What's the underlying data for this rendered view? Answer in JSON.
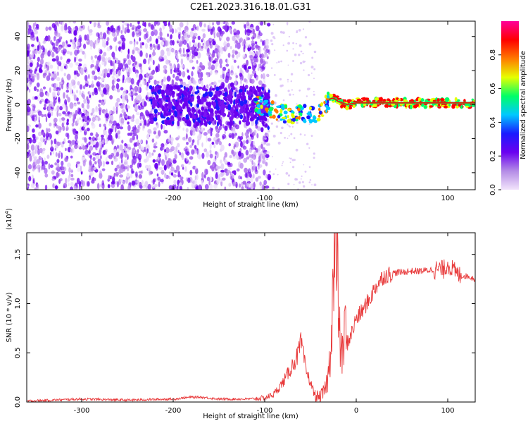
{
  "title": "C2E1.2023.316.18.01.G31",
  "chart_data": [
    {
      "type": "heatmap",
      "xlabel": "Height of straight line (km)",
      "ylabel": "Frequency (Hz)",
      "xlim": [
        -360,
        130
      ],
      "ylim": [
        -50,
        49
      ],
      "x_ticks": [
        -300,
        -200,
        -100,
        0,
        100
      ],
      "y_ticks": [
        -40,
        -20,
        0,
        20,
        40
      ],
      "colorbar": {
        "label": "Normalized spectral amplitude",
        "range": [
          0.0,
          1.0
        ],
        "ticks": [
          "0.0",
          "0.2",
          "0.4",
          "0.6",
          "0.8"
        ],
        "colors": [
          "#f2e4fb",
          "#b48ce6",
          "#6a00f0",
          "#1a1aff",
          "#00c8ff",
          "#00ff66",
          "#e6ff00",
          "#ff7a00",
          "#ff0000",
          "#ff0099"
        ]
      },
      "ridge": [
        [
          -200,
          0
        ],
        [
          -150,
          -1
        ],
        [
          -110,
          0
        ],
        [
          -95,
          -3
        ],
        [
          -80,
          -5
        ],
        [
          -70,
          -6
        ],
        [
          -60,
          -5
        ],
        [
          -50,
          -6
        ],
        [
          -40,
          -5
        ],
        [
          -35,
          -1
        ],
        [
          -30,
          3
        ],
        [
          -25,
          4
        ],
        [
          -20,
          2
        ],
        [
          -10,
          0
        ],
        [
          0,
          1
        ],
        [
          20,
          1
        ],
        [
          60,
          1
        ],
        [
          90,
          1
        ],
        [
          130,
          1
        ]
      ]
    },
    {
      "type": "line",
      "xlabel": "Height of straight line (km)",
      "ylabel": "SNR (10 * v/v)",
      "scale_note": "(x10",
      "scale_exp": "4",
      "scale_close": ")",
      "xlim": [
        -360,
        130
      ],
      "ylim": [
        0,
        1.72
      ],
      "x_ticks": [
        -300,
        -200,
        -100,
        0,
        100
      ],
      "y_ticks": [
        "0.0",
        "0.5",
        "1.0",
        "1.5"
      ],
      "color": "#e8393a",
      "series": [
        {
          "x": [
            -360,
            -330,
            -300,
            -250,
            -200,
            -180,
            -170,
            -150,
            -120,
            -100,
            -90,
            -85,
            -80,
            -75,
            -70,
            -65,
            -60,
            -55,
            -50,
            -45,
            -40,
            -35,
            -32,
            -30,
            -28,
            -25,
            -22,
            -20,
            -18,
            -15,
            -12,
            -10,
            -5,
            0,
            5,
            10,
            15,
            20,
            25,
            30,
            40,
            50,
            60,
            70,
            80,
            90,
            95,
            100,
            105,
            110,
            115,
            120,
            125,
            130
          ],
          "y": [
            0.01,
            0.02,
            0.03,
            0.02,
            0.03,
            0.05,
            0.05,
            0.03,
            0.03,
            0.04,
            0.08,
            0.14,
            0.2,
            0.28,
            0.37,
            0.45,
            0.6,
            0.32,
            0.2,
            0.06,
            0.05,
            0.1,
            0.2,
            0.3,
            0.6,
            1.25,
            1.5,
            1.2,
            0.65,
            0.45,
            0.78,
            0.6,
            0.7,
            0.85,
            0.9,
            0.98,
            1.05,
            1.15,
            1.22,
            1.28,
            1.31,
            1.32,
            1.33,
            1.33,
            1.34,
            1.35,
            1.34,
            1.4,
            1.35,
            1.3,
            1.28,
            1.28,
            1.27,
            1.25
          ]
        }
      ]
    }
  ]
}
